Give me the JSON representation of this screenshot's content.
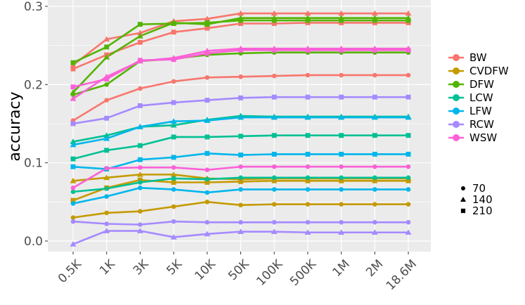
{
  "chart_data": {
    "type": "line",
    "xlabel": "",
    "ylabel": "accuracy",
    "categories": [
      "0.5K",
      "1K",
      "3K",
      "5K",
      "10K",
      "50K",
      "100K",
      "500K",
      "1M",
      "2M",
      "18.6M"
    ],
    "ylim": [
      -0.015,
      0.3
    ],
    "yticks": [
      0.0,
      0.1,
      0.2,
      0.3
    ],
    "ytick_labels": [
      "0.0",
      "0.1",
      "0.2",
      "0.3"
    ],
    "grid": true,
    "background": "#ebebeb",
    "legend_position": "right",
    "color_legend": [
      {
        "label": "BW",
        "color": "#f8766d"
      },
      {
        "label": "CVDFW",
        "color": "#c49a00"
      },
      {
        "label": "DFW",
        "color": "#53b400"
      },
      {
        "label": "LCW",
        "color": "#00c094"
      },
      {
        "label": "LFW",
        "color": "#00b6eb"
      },
      {
        "label": "RCW",
        "color": "#a58aff"
      },
      {
        "label": "WSW",
        "color": "#fb61d7"
      }
    ],
    "shape_legend": [
      {
        "label": "70",
        "shape": "circle"
      },
      {
        "label": "140",
        "shape": "triangle"
      },
      {
        "label": "210",
        "shape": "square"
      }
    ],
    "series": [
      {
        "method": "BW",
        "group": "70",
        "color": "#f8766d",
        "shape": "circle",
        "values": [
          0.154,
          0.18,
          0.195,
          0.204,
          0.209,
          0.21,
          0.211,
          0.212,
          0.212,
          0.212,
          0.212
        ]
      },
      {
        "method": "BW",
        "group": "140",
        "color": "#f8766d",
        "shape": "triangle",
        "values": [
          0.225,
          0.258,
          0.266,
          0.281,
          0.284,
          0.291,
          0.291,
          0.291,
          0.291,
          0.291,
          0.291
        ]
      },
      {
        "method": "BW",
        "group": "210",
        "color": "#f8766d",
        "shape": "square",
        "values": [
          0.22,
          0.238,
          0.254,
          0.267,
          0.272,
          0.278,
          0.278,
          0.279,
          0.279,
          0.279,
          0.279
        ]
      },
      {
        "method": "CVDFW",
        "group": "70",
        "color": "#c49a00",
        "shape": "circle",
        "values": [
          0.03,
          0.036,
          0.038,
          0.044,
          0.05,
          0.046,
          0.047,
          0.047,
          0.047,
          0.047,
          0.047
        ]
      },
      {
        "method": "CVDFW",
        "group": "140",
        "color": "#c49a00",
        "shape": "triangle",
        "values": [
          0.077,
          0.081,
          0.085,
          0.085,
          0.08,
          0.079,
          0.08,
          0.08,
          0.08,
          0.08,
          0.08
        ]
      },
      {
        "method": "CVDFW",
        "group": "210",
        "color": "#c49a00",
        "shape": "square",
        "values": [
          0.052,
          0.068,
          0.078,
          0.075,
          0.075,
          0.076,
          0.077,
          0.077,
          0.077,
          0.077,
          0.077
        ]
      },
      {
        "method": "DFW",
        "group": "70",
        "color": "#53b400",
        "shape": "circle",
        "values": [
          0.187,
          0.2,
          0.23,
          0.233,
          0.238,
          0.24,
          0.241,
          0.241,
          0.241,
          0.241,
          0.241
        ]
      },
      {
        "method": "DFW",
        "group": "140",
        "color": "#53b400",
        "shape": "triangle",
        "values": [
          0.19,
          0.235,
          0.262,
          0.279,
          0.277,
          0.285,
          0.285,
          0.285,
          0.285,
          0.285,
          0.285
        ]
      },
      {
        "method": "DFW",
        "group": "210",
        "color": "#53b400",
        "shape": "square",
        "values": [
          0.228,
          0.248,
          0.277,
          0.278,
          0.279,
          0.282,
          0.282,
          0.282,
          0.282,
          0.282,
          0.282
        ]
      },
      {
        "method": "LCW",
        "group": "70",
        "color": "#00c094",
        "shape": "circle",
        "values": [
          0.063,
          0.067,
          0.075,
          0.08,
          0.079,
          0.081,
          0.081,
          0.081,
          0.081,
          0.081,
          0.081
        ]
      },
      {
        "method": "LCW",
        "group": "140",
        "color": "#00c094",
        "shape": "triangle",
        "values": [
          0.127,
          0.135,
          0.146,
          0.148,
          0.155,
          0.16,
          0.159,
          0.159,
          0.159,
          0.159,
          0.159
        ]
      },
      {
        "method": "LCW",
        "group": "210",
        "color": "#00c094",
        "shape": "square",
        "values": [
          0.105,
          0.116,
          0.122,
          0.133,
          0.133,
          0.134,
          0.135,
          0.135,
          0.135,
          0.135,
          0.135
        ]
      },
      {
        "method": "LFW",
        "group": "70",
        "color": "#00b6eb",
        "shape": "circle",
        "values": [
          0.048,
          0.057,
          0.068,
          0.066,
          0.062,
          0.066,
          0.066,
          0.066,
          0.066,
          0.066,
          0.066
        ]
      },
      {
        "method": "LFW",
        "group": "140",
        "color": "#00b6eb",
        "shape": "triangle",
        "values": [
          0.123,
          0.131,
          0.146,
          0.153,
          0.154,
          0.158,
          0.158,
          0.158,
          0.158,
          0.158,
          0.158
        ]
      },
      {
        "method": "LFW",
        "group": "210",
        "color": "#00b6eb",
        "shape": "square",
        "values": [
          0.095,
          0.092,
          0.104,
          0.107,
          0.112,
          0.11,
          0.111,
          0.111,
          0.111,
          0.111,
          0.111
        ]
      },
      {
        "method": "RCW",
        "group": "70",
        "color": "#a58aff",
        "shape": "circle",
        "values": [
          0.025,
          0.022,
          0.021,
          0.025,
          0.024,
          0.024,
          0.024,
          0.024,
          0.024,
          0.024,
          0.024
        ]
      },
      {
        "method": "RCW",
        "group": "140",
        "color": "#a58aff",
        "shape": "triangle",
        "values": [
          -0.004,
          0.013,
          0.013,
          0.005,
          0.009,
          0.012,
          0.012,
          0.011,
          0.011,
          0.011,
          0.011
        ]
      },
      {
        "method": "RCW",
        "group": "210",
        "color": "#a58aff",
        "shape": "square",
        "values": [
          0.15,
          0.157,
          0.173,
          0.177,
          0.18,
          0.183,
          0.184,
          0.184,
          0.184,
          0.184,
          0.184
        ]
      },
      {
        "method": "WSW",
        "group": "70",
        "color": "#fb61d7",
        "shape": "circle",
        "values": [
          0.068,
          0.093,
          0.094,
          0.094,
          0.091,
          0.095,
          0.095,
          0.095,
          0.095,
          0.095,
          0.095
        ]
      },
      {
        "method": "WSW",
        "group": "140",
        "color": "#fb61d7",
        "shape": "triangle",
        "values": [
          0.182,
          0.21,
          0.23,
          0.234,
          0.243,
          0.246,
          0.246,
          0.246,
          0.246,
          0.246,
          0.246
        ]
      },
      {
        "method": "WSW",
        "group": "210",
        "color": "#fb61d7",
        "shape": "square",
        "values": [
          0.197,
          0.207,
          0.231,
          0.232,
          0.24,
          0.244,
          0.244,
          0.244,
          0.244,
          0.244,
          0.244
        ]
      }
    ]
  }
}
